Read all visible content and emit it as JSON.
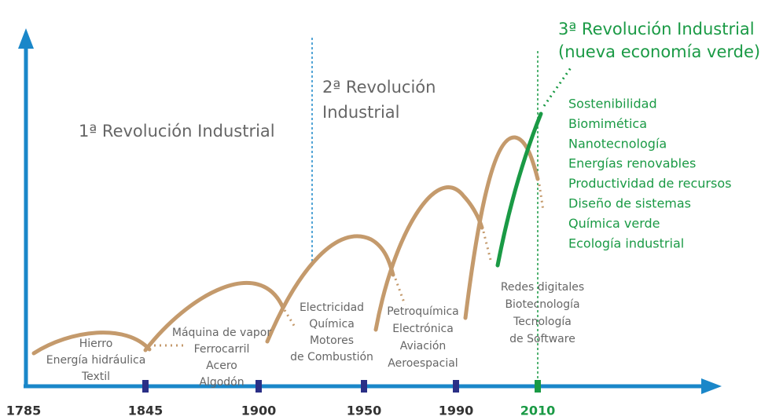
{
  "revolutions": [
    {
      "lines": [
        "1ª Revolución Industrial"
      ]
    },
    {
      "lines": [
        "2ª Revolución",
        "Industrial"
      ]
    },
    {
      "lines": [
        "3ª Revolución Industrial",
        "(nueva economía verde)"
      ]
    }
  ],
  "timeline": {
    "years": [
      "1785",
      "1845",
      "1900",
      "1950",
      "1990",
      "2010"
    ]
  },
  "waves": [
    {
      "lines": [
        "Hierro",
        "Energía hidráulica",
        "Textil"
      ]
    },
    {
      "lines": [
        "Máquina de vapor",
        "Ferrocarril",
        "Acero",
        "Algodón"
      ]
    },
    {
      "lines": [
        "Electricidad",
        "Química",
        "Motores",
        "de Combustión"
      ]
    },
    {
      "lines": [
        "Petroquímica",
        "Electrónica",
        "Aviación",
        "Aeroespacial"
      ]
    },
    {
      "lines": [
        "Redes digitales",
        "Biotecnología",
        "Tecnología",
        "de Software"
      ]
    }
  ],
  "green_economy": {
    "items": [
      "Sostenibilidad",
      "Biomimética",
      "Nanotecnología",
      "Energías renovables",
      "Productividad de recursos",
      "Diseño de sistemas",
      "Química verde",
      "Ecología industrial"
    ]
  }
}
